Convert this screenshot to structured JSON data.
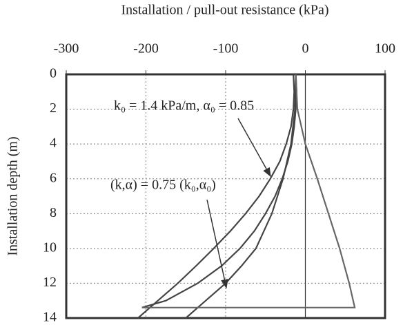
{
  "chart_data": {
    "type": "line",
    "title": "Installation / pull-out resistance (kPa)",
    "y_label": "Installation depth (m)",
    "xlim": [
      -300,
      100
    ],
    "xticks": [
      -300,
      -200,
      -100,
      0,
      100
    ],
    "ylim": [
      0,
      14
    ],
    "yticks": [
      0,
      2,
      4,
      6,
      8,
      10,
      12,
      14
    ],
    "y_inverted": true,
    "x_axis_top": true,
    "grid": true,
    "annotations": [
      "k₀ = 1.4 kPa/m, α₀  = 0.85",
      "(k,α) = 0.75 (k₀,α₀)"
    ],
    "series": [
      {
        "color": "#444",
        "x": [
          -15,
          -14,
          -15,
          -18,
          -24,
          -32,
          -44,
          -58,
          -75,
          -94,
          -115,
          -137,
          -160,
          -185,
          -210
        ],
        "values": [
          0,
          1,
          2,
          3,
          4,
          5,
          6,
          7,
          8,
          9,
          10,
          11,
          12,
          13,
          14
        ]
      },
      {
        "color": "#444",
        "x": [
          -12,
          -11,
          -12,
          -14,
          -17,
          -22,
          -29,
          -38,
          -50,
          -64,
          -82,
          -105,
          -135,
          -175,
          -205
        ],
        "values": [
          0,
          1,
          2,
          3,
          4,
          5,
          6,
          7,
          8,
          9,
          10,
          11,
          12,
          13,
          13.4
        ]
      },
      {
        "color": "#444",
        "x": [
          -12,
          -13,
          -18,
          -28,
          -42,
          -62,
          -80,
          -100,
          -125,
          -150
        ],
        "values": [
          0,
          2,
          4,
          6,
          8,
          10,
          11,
          12,
          13,
          14
        ]
      },
      {
        "color": "#666",
        "x": [
          -12,
          -10,
          0,
          15,
          29,
          43,
          55,
          62,
          -205
        ],
        "values": [
          0,
          2,
          4,
          6,
          8,
          10,
          12,
          13.4,
          13.4
        ]
      }
    ]
  }
}
